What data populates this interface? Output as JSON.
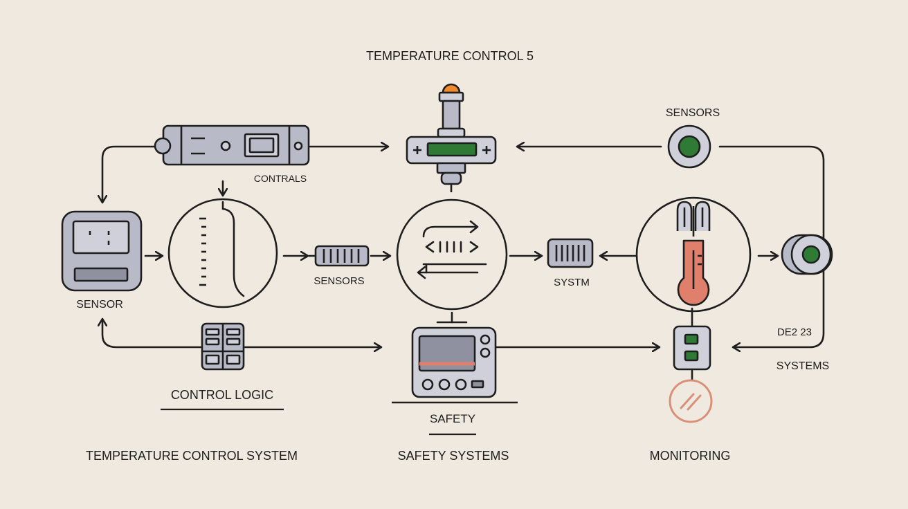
{
  "colors": {
    "background": "#efe9df",
    "stroke": "#1e1e1e",
    "device_fill": "#b9bac8",
    "device_fill_light": "#cfd0da",
    "display_green": "#2f7a35",
    "accent_orange": "#f08a2c",
    "thermo_red": "#e07f6c",
    "alert_pink": "#d99079",
    "underline": "#1e1e1e"
  },
  "labels": {
    "top_title": "TEMPERATURE CONTROL 5",
    "sensors_top_right": "SENSORS",
    "contrals": "CONTRALS",
    "sensor_left": "SENSOR",
    "sensors_mid": "SENSORS",
    "systm": "SYSTM",
    "de2": "DE2 23",
    "systems_right": "SYSTEMS",
    "control_logic": "CONTROL LOGIC",
    "safety": "SAFETY",
    "footer_left": "TEMPERATURE CONTROL SYSTEM",
    "footer_mid": "SAFETY SYSTEMS",
    "footer_right": "MONITORING"
  },
  "icons": [
    "controller-panel-icon",
    "probe-actuator-icon",
    "sensor-button-icon",
    "sensor-module-icon",
    "gauge-circle-icon",
    "connector-icon",
    "flow-circle-icon",
    "system-chip-icon",
    "thermometer-circle-icon",
    "sensor-knob-icon",
    "logic-grid-icon",
    "safety-console-icon",
    "monitor-switch-icon",
    "alert-circle-icon"
  ]
}
